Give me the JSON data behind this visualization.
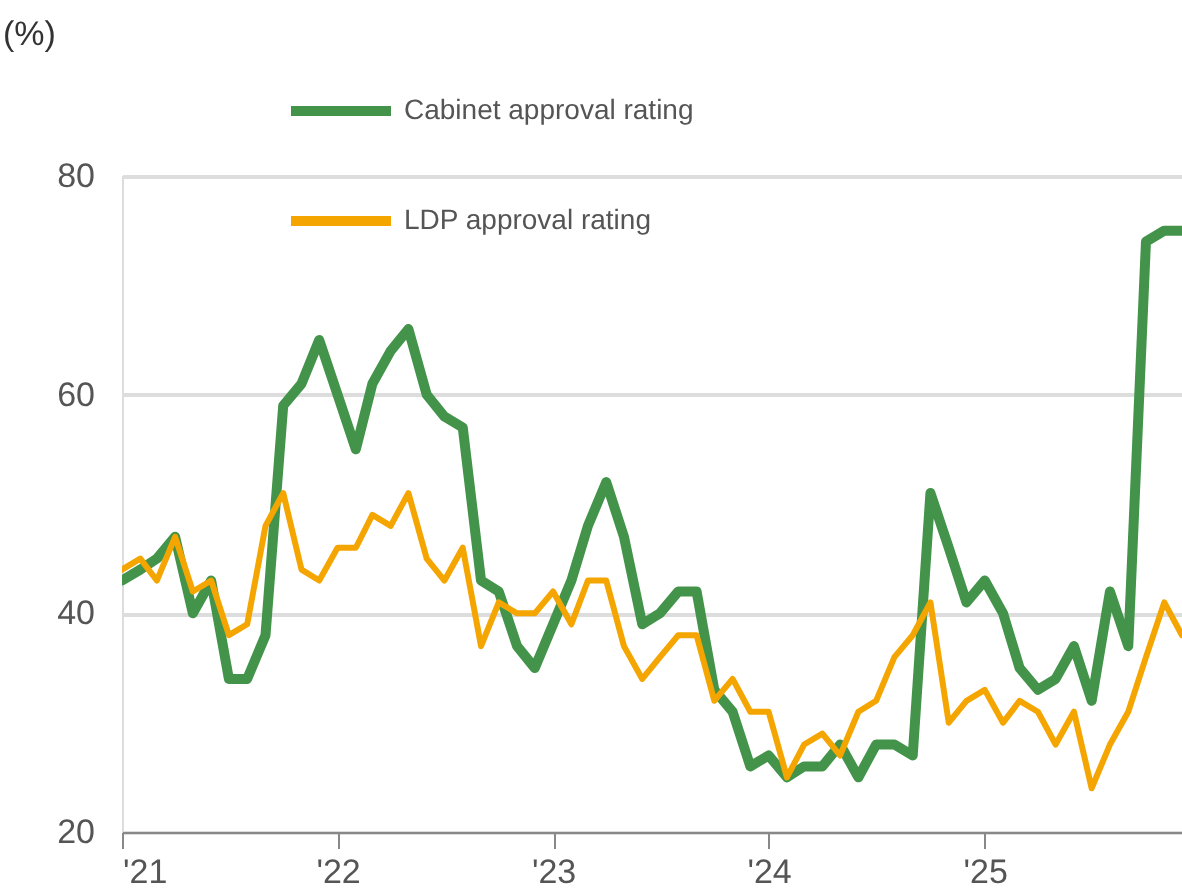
{
  "chart_data": {
    "type": "line",
    "ylabel": "(%)",
    "x": [
      "2021-01",
      "2021-02",
      "2021-03",
      "2021-04",
      "2021-05",
      "2021-06",
      "2021-07",
      "2021-08",
      "2021-09",
      "2021-10",
      "2021-11",
      "2021-12",
      "2022-01",
      "2022-02",
      "2022-03",
      "2022-04",
      "2022-05",
      "2022-06",
      "2022-07",
      "2022-08",
      "2022-09",
      "2022-10",
      "2022-11",
      "2022-12",
      "2023-01",
      "2023-02",
      "2023-03",
      "2023-04",
      "2023-05",
      "2023-06",
      "2023-07",
      "2023-08",
      "2023-09",
      "2023-10",
      "2023-11",
      "2023-12",
      "2024-01",
      "2024-02",
      "2024-03",
      "2024-04",
      "2024-05",
      "2024-06",
      "2024-07",
      "2024-08",
      "2024-09",
      "2024-10",
      "2024-11",
      "2024-12",
      "2025-01",
      "2025-02",
      "2025-03",
      "2025-04",
      "2025-05",
      "2025-06",
      "2025-07",
      "2025-08",
      "2025-09",
      "2025-10",
      "2025-11",
      "2025-12"
    ],
    "series": [
      {
        "name": "Cabinet approval rating",
        "color": "#43944a",
        "values": [
          43,
          44,
          45,
          47,
          40,
          43,
          34,
          34,
          38,
          59,
          61,
          65,
          60,
          55,
          61,
          64,
          66,
          60,
          58,
          57,
          43,
          42,
          37,
          35,
          39,
          43,
          48,
          52,
          47,
          39,
          40,
          42,
          42,
          33,
          31,
          26,
          27,
          25,
          26,
          26,
          28,
          25,
          28,
          28,
          27,
          51,
          46,
          41,
          43,
          40,
          35,
          33,
          34,
          37,
          32,
          42,
          37,
          74,
          75,
          75
        ]
      },
      {
        "name": "LDP approval rating",
        "color": "#f5a500",
        "values": [
          44,
          45,
          43,
          47,
          42,
          43,
          38,
          39,
          48,
          51,
          44,
          43,
          46,
          46,
          49,
          48,
          51,
          45,
          43,
          46,
          37,
          41,
          40,
          40,
          42,
          39,
          43,
          43,
          37,
          34,
          36,
          38,
          38,
          32,
          34,
          31,
          31,
          25,
          28,
          29,
          27,
          31,
          32,
          36,
          38,
          41,
          30,
          32,
          33,
          30,
          32,
          31,
          28,
          31,
          24,
          28,
          31,
          36,
          41,
          38
        ]
      }
    ],
    "xlim": [
      "2021-01",
      "2025-12"
    ],
    "xticks": [
      {
        "value": "2021-01",
        "label": "'21"
      },
      {
        "value": "2022-01",
        "label": "'22"
      },
      {
        "value": "2023-01",
        "label": "'23"
      },
      {
        "value": "2024-01",
        "label": "'24"
      },
      {
        "value": "2025-01",
        "label": "'25"
      }
    ],
    "ylim": [
      20,
      80
    ],
    "yticks": [
      20,
      40,
      60,
      80
    ],
    "grid": "y",
    "legend": "top",
    "marker": "none",
    "line_style": "solid"
  }
}
